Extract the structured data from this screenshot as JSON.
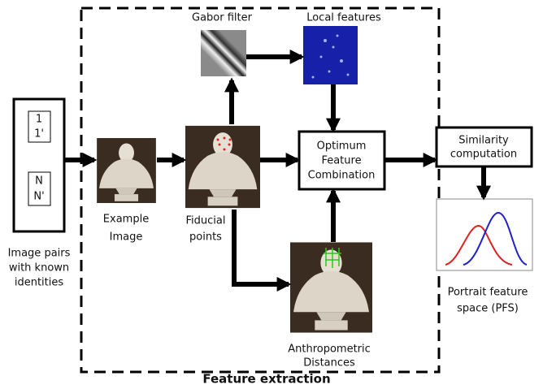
{
  "title": "Feature extraction",
  "input": {
    "pairs": [
      [
        "1",
        "1'"
      ],
      [
        "N",
        "N'"
      ]
    ],
    "caption": [
      "Image pairs",
      "with known",
      "identities"
    ]
  },
  "stages": {
    "example": [
      "Example",
      "Image"
    ],
    "fiducial": [
      "Fiducial",
      "points"
    ],
    "gabor": "Gabor filter",
    "local": "Local features",
    "anthropometric": [
      "Anthropometric",
      "Distances"
    ],
    "combination": [
      "Optimum",
      "Feature",
      "Combination"
    ],
    "similarity": [
      "Similarity",
      "computation"
    ],
    "pfs": [
      "Portrait feature",
      "space (PFS)"
    ]
  }
}
